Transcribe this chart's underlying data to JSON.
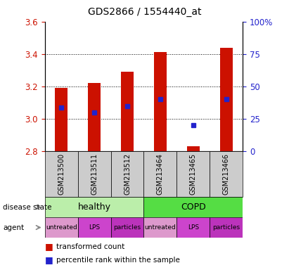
{
  "title": "GDS2866 / 1554440_at",
  "samples": [
    "GSM213500",
    "GSM213511",
    "GSM213512",
    "GSM213464",
    "GSM213465",
    "GSM213466"
  ],
  "bar_bottoms": [
    2.8,
    2.8,
    2.8,
    2.8,
    2.8,
    2.8
  ],
  "bar_tops": [
    3.19,
    3.22,
    3.29,
    3.41,
    2.83,
    3.44
  ],
  "blue_dot_values": [
    3.07,
    3.04,
    3.08,
    3.12,
    2.96,
    3.12
  ],
  "ylim_left": [
    2.8,
    3.6
  ],
  "ylim_right": [
    0,
    100
  ],
  "yticks_left": [
    2.8,
    3.0,
    3.2,
    3.4,
    3.6
  ],
  "yticks_right": [
    0,
    25,
    50,
    75,
    100
  ],
  "ytick_right_labels": [
    "0",
    "25",
    "50",
    "75",
    "100%"
  ],
  "bar_color": "#cc1100",
  "dot_color": "#2222cc",
  "disease_states": [
    "healthy",
    "COPD"
  ],
  "disease_colors": [
    "#bbeeaa",
    "#55dd44"
  ],
  "agents": [
    "untreated",
    "LPS",
    "particles",
    "untreated",
    "LPS",
    "particles"
  ],
  "agent_colors": [
    "#dd99cc",
    "#cc44cc",
    "#bb33bb",
    "#dd99cc",
    "#cc44cc",
    "#bb33bb"
  ],
  "sample_bg": "#cccccc",
  "ylabel_left_color": "#cc1100",
  "ylabel_right_color": "#2222cc",
  "grid_yticks": [
    3.0,
    3.2,
    3.4
  ],
  "arrow_color": "#888888"
}
